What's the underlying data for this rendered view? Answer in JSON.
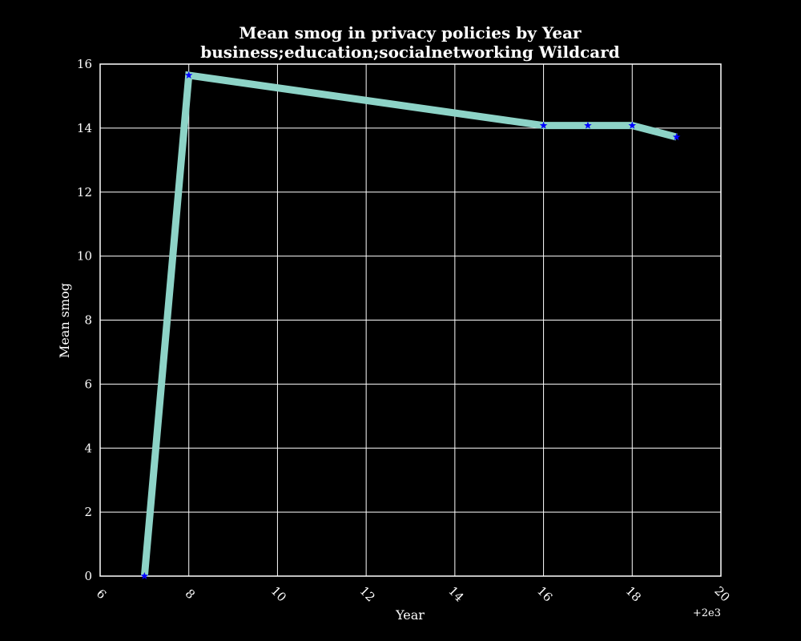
{
  "chart_data": {
    "type": "line",
    "title": "Mean smog in privacy policies by Year",
    "subtitle": "business;education;socialnetworking Wildcard",
    "xlabel": "Year",
    "ylabel": "Mean smog",
    "x_offset_label": "+2e3",
    "xlim": [
      6,
      20
    ],
    "ylim": [
      0,
      16
    ],
    "x_ticks": [
      "6",
      "8",
      "10",
      "12",
      "14",
      "16",
      "18",
      "20"
    ],
    "y_ticks": [
      "0",
      "2",
      "4",
      "6",
      "8",
      "10",
      "12",
      "14",
      "16"
    ],
    "grid": true,
    "series": [
      {
        "x": [
          7,
          8,
          16,
          17,
          18,
          19
        ],
        "y": [
          0.0,
          15.65,
          14.08,
          14.08,
          14.08,
          13.72
        ],
        "line_color": "#8dd3c7",
        "marker": "star",
        "marker_color": "#0000ff"
      }
    ]
  },
  "colors": {
    "background": "#000000",
    "foreground": "#ffffff"
  }
}
